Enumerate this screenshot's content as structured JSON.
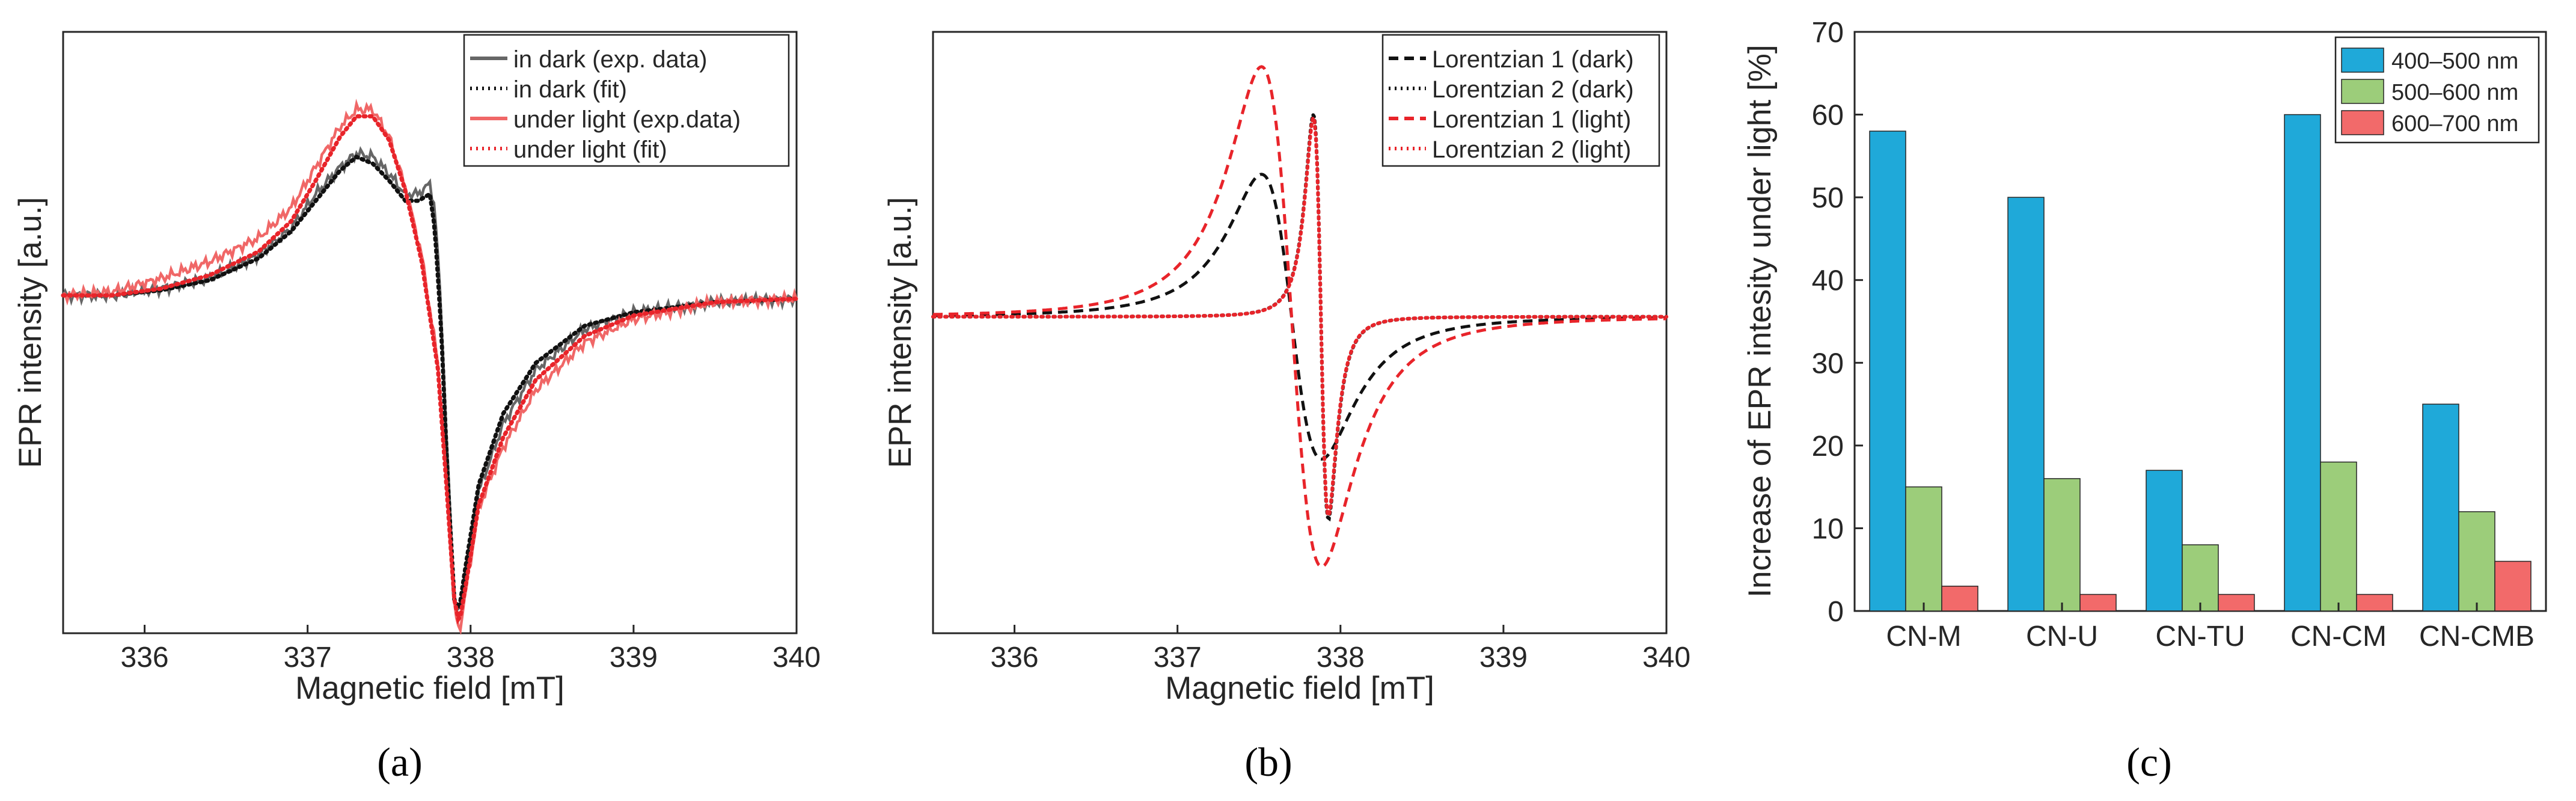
{
  "figure_labels": [
    "(a)",
    "(b)",
    "(c)"
  ],
  "chart_data": [
    {
      "type": "line",
      "panel": "(a)",
      "xlabel": "Magnetic field [mT]",
      "ylabel": "EPR intensity [a.u.]",
      "xlim": [
        335.5,
        340
      ],
      "ylim": [
        -1.0,
        0.78
      ],
      "xticks": [
        336,
        337,
        338,
        339,
        340
      ],
      "yticks_shown": false,
      "legend": "top-right",
      "series": [
        {
          "name": "in dark (exp. data)",
          "color": "#666666",
          "dash": "solid",
          "noisy": true,
          "points": [
            [
              335.5,
              0.0
            ],
            [
              335.8,
              0.0
            ],
            [
              336.1,
              0.02
            ],
            [
              336.4,
              0.05
            ],
            [
              336.7,
              0.12
            ],
            [
              336.9,
              0.2
            ],
            [
              337.05,
              0.3
            ],
            [
              337.2,
              0.38
            ],
            [
              337.3,
              0.42
            ],
            [
              337.4,
              0.41
            ],
            [
              337.5,
              0.36
            ],
            [
              337.6,
              0.3
            ],
            [
              337.68,
              0.3
            ],
            [
              337.75,
              0.33
            ],
            [
              337.78,
              0.26
            ],
            [
              337.82,
              -0.05
            ],
            [
              337.86,
              -0.5
            ],
            [
              337.9,
              -0.9
            ],
            [
              337.93,
              -0.95
            ],
            [
              337.97,
              -0.82
            ],
            [
              338.05,
              -0.58
            ],
            [
              338.2,
              -0.38
            ],
            [
              338.4,
              -0.22
            ],
            [
              338.7,
              -0.1
            ],
            [
              339.0,
              -0.05
            ],
            [
              339.5,
              -0.02
            ],
            [
              340,
              -0.01
            ]
          ]
        },
        {
          "name": "in dark (fit)",
          "color": "#111111",
          "dash": "dotted",
          "noisy": false,
          "points": [
            [
              335.5,
              0.0
            ],
            [
              335.8,
              0.0
            ],
            [
              336.1,
              0.015
            ],
            [
              336.4,
              0.045
            ],
            [
              336.7,
              0.11
            ],
            [
              336.9,
              0.19
            ],
            [
              337.05,
              0.28
            ],
            [
              337.2,
              0.37
            ],
            [
              337.3,
              0.41
            ],
            [
              337.4,
              0.39
            ],
            [
              337.5,
              0.34
            ],
            [
              337.6,
              0.28
            ],
            [
              337.68,
              0.28
            ],
            [
              337.75,
              0.3
            ],
            [
              337.78,
              0.2
            ],
            [
              337.82,
              -0.1
            ],
            [
              337.86,
              -0.55
            ],
            [
              337.9,
              -0.9
            ],
            [
              337.93,
              -0.93
            ],
            [
              337.97,
              -0.8
            ],
            [
              338.05,
              -0.56
            ],
            [
              338.2,
              -0.35
            ],
            [
              338.4,
              -0.2
            ],
            [
              338.7,
              -0.09
            ],
            [
              339.0,
              -0.05
            ],
            [
              339.5,
              -0.02
            ],
            [
              340,
              -0.01
            ]
          ]
        },
        {
          "name": "under light (exp.data)",
          "color": "#f06767",
          "dash": "solid",
          "noisy": true,
          "points": [
            [
              335.5,
              0.0
            ],
            [
              335.8,
              0.01
            ],
            [
              336.1,
              0.05
            ],
            [
              336.4,
              0.1
            ],
            [
              336.7,
              0.17
            ],
            [
              336.9,
              0.26
            ],
            [
              337.05,
              0.38
            ],
            [
              337.2,
              0.5
            ],
            [
              337.3,
              0.55
            ],
            [
              337.4,
              0.55
            ],
            [
              337.5,
              0.47
            ],
            [
              337.6,
              0.32
            ],
            [
              337.7,
              0.12
            ],
            [
              337.8,
              -0.2
            ],
            [
              337.85,
              -0.55
            ],
            [
              337.9,
              -0.92
            ],
            [
              337.93,
              -1.0
            ],
            [
              337.97,
              -0.88
            ],
            [
              338.05,
              -0.63
            ],
            [
              338.2,
              -0.45
            ],
            [
              338.4,
              -0.28
            ],
            [
              338.7,
              -0.14
            ],
            [
              339.0,
              -0.07
            ],
            [
              339.5,
              -0.02
            ],
            [
              340,
              -0.01
            ]
          ]
        },
        {
          "name": "under light (fit)",
          "color": "#e8242a",
          "dash": "dotted",
          "noisy": false,
          "points": [
            [
              335.5,
              0.0
            ],
            [
              335.8,
              0.0
            ],
            [
              336.1,
              0.02
            ],
            [
              336.4,
              0.06
            ],
            [
              336.7,
              0.13
            ],
            [
              336.9,
              0.22
            ],
            [
              337.05,
              0.34
            ],
            [
              337.2,
              0.47
            ],
            [
              337.3,
              0.53
            ],
            [
              337.4,
              0.53
            ],
            [
              337.5,
              0.46
            ],
            [
              337.6,
              0.31
            ],
            [
              337.7,
              0.1
            ],
            [
              337.8,
              -0.22
            ],
            [
              337.85,
              -0.55
            ],
            [
              337.9,
              -0.9
            ],
            [
              337.93,
              -0.97
            ],
            [
              337.97,
              -0.86
            ],
            [
              338.05,
              -0.62
            ],
            [
              338.2,
              -0.42
            ],
            [
              338.4,
              -0.25
            ],
            [
              338.7,
              -0.12
            ],
            [
              339.0,
              -0.06
            ],
            [
              339.5,
              -0.02
            ],
            [
              340,
              -0.01
            ]
          ]
        }
      ]
    },
    {
      "type": "line",
      "panel": "(b)",
      "xlabel": "Magnetic field [mT]",
      "ylabel": "EPR intensity [a.u.]",
      "xlim": [
        335.5,
        340
      ],
      "ylim": [
        -1.0,
        0.9
      ],
      "xticks": [
        336,
        337,
        338,
        339,
        340
      ],
      "yticks_shown": false,
      "legend": "top-right",
      "series": [
        {
          "name": "Lorentzian 1 (dark)",
          "color": "#111111",
          "dash": "dashed",
          "center": 337.7,
          "halfwidth": 0.32,
          "amplitude": 0.45
        },
        {
          "name": "Lorentzian 2 (dark)",
          "color": "#111111",
          "dash": "dotted",
          "center": 337.88,
          "halfwidth": 0.08,
          "amplitude": 0.64
        },
        {
          "name": "Lorentzian 1 (light)",
          "color": "#e8242a",
          "dash": "dashed",
          "center": 337.7,
          "halfwidth": 0.32,
          "amplitude": 0.79
        },
        {
          "name": "Lorentzian 2 (light)",
          "color": "#e8242a",
          "dash": "dotted",
          "center": 337.88,
          "halfwidth": 0.08,
          "amplitude": 0.63
        }
      ]
    },
    {
      "type": "bar",
      "panel": "(c)",
      "categories": [
        "CN-M",
        "CN-U",
        "CN-TU",
        "CN-CM",
        "CN-CMB"
      ],
      "series": [
        {
          "name": "400–500 nm",
          "color": "#1fa9d9",
          "values": [
            58,
            50,
            17,
            60,
            25
          ]
        },
        {
          "name": "500–600 nm",
          "color": "#9ccd7a",
          "values": [
            15,
            16,
            8,
            18,
            12
          ]
        },
        {
          "name": "600–700 nm",
          "color": "#f26a6a",
          "values": [
            3,
            2,
            2,
            2,
            6
          ]
        }
      ],
      "xlabel": "",
      "ylabel": "Increase of EPR intesity under light [%]",
      "ylim": [
        0,
        70
      ],
      "yticks": [
        0,
        10,
        20,
        30,
        40,
        50,
        60,
        70
      ],
      "legend": "top-right"
    }
  ]
}
